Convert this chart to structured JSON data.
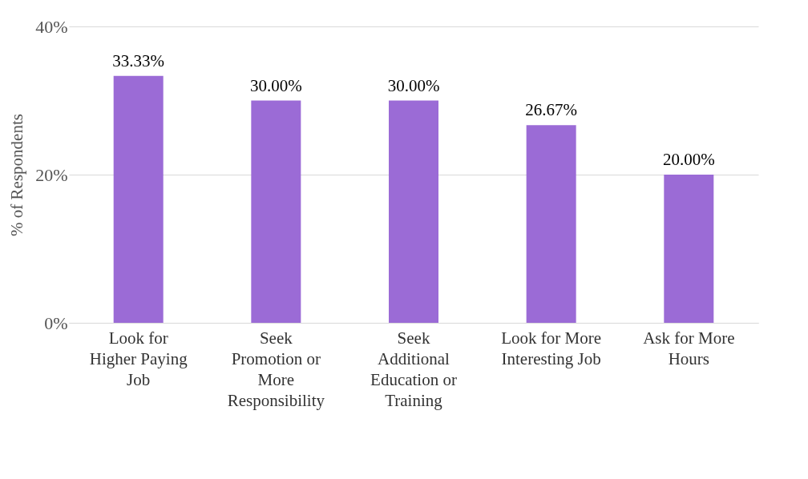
{
  "chart_data": {
    "type": "bar",
    "ylabel": "% of Respondents",
    "categories": [
      "Look for\nHigher Paying\nJob",
      "Seek\nPromotion or\nMore\nResponsibility",
      "Seek\nAdditional\nEducation or\nTraining",
      "Look for More\nInteresting Job",
      "Ask for More\nHours"
    ],
    "values": [
      33.33,
      30.0,
      30.0,
      26.67,
      20.0
    ],
    "value_labels": [
      "33.33%",
      "30.00%",
      "30.00%",
      "26.67%",
      "20.00%"
    ],
    "color": "#9b6bd6",
    "ylim": [
      0,
      40
    ],
    "yticks": [
      {
        "value": 0,
        "label": "0%"
      },
      {
        "value": 20,
        "label": "20%"
      },
      {
        "value": 40,
        "label": "40%"
      }
    ],
    "grid": "y"
  }
}
